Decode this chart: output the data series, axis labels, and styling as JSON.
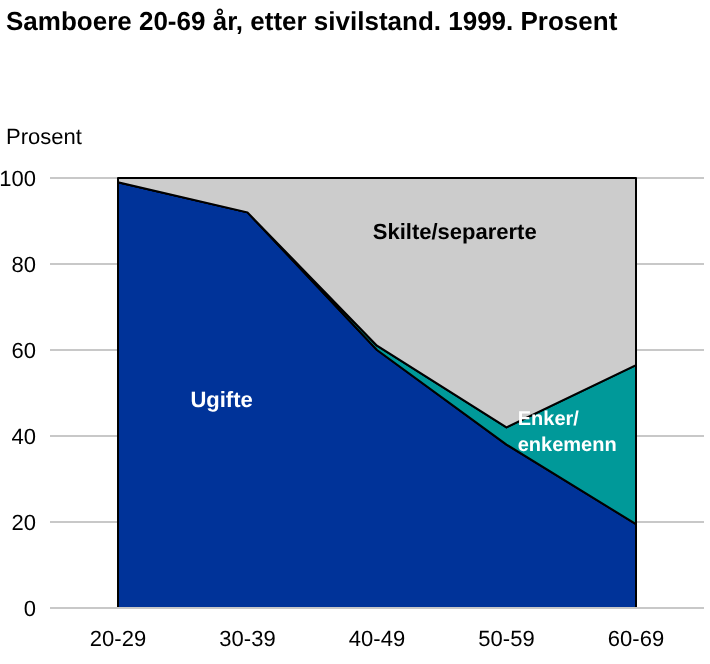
{
  "chart_data": {
    "type": "area",
    "stacked": true,
    "title": "Samboere 20-69 år, etter sivilstand. 1999. Prosent",
    "ylabel": "Prosent",
    "categories": [
      "20-29",
      "30-39",
      "40-49",
      "50-59",
      "60-69"
    ],
    "series": [
      {
        "name": "Ugifte",
        "color": "#003399",
        "values": [
          99,
          92,
          60,
          38,
          19.5
        ]
      },
      {
        "name": "Enker/ enkemenn",
        "color": "#009999",
        "values": [
          0,
          0,
          1,
          4,
          37
        ]
      },
      {
        "name": "Skilte/separerte",
        "color": "#cccccc",
        "values": [
          1,
          8,
          39,
          58,
          43.5
        ]
      }
    ],
    "ylim": [
      0,
      100
    ],
    "yticks": [
      0,
      20,
      40,
      60,
      80,
      100
    ],
    "grid": "y",
    "legend": false
  }
}
